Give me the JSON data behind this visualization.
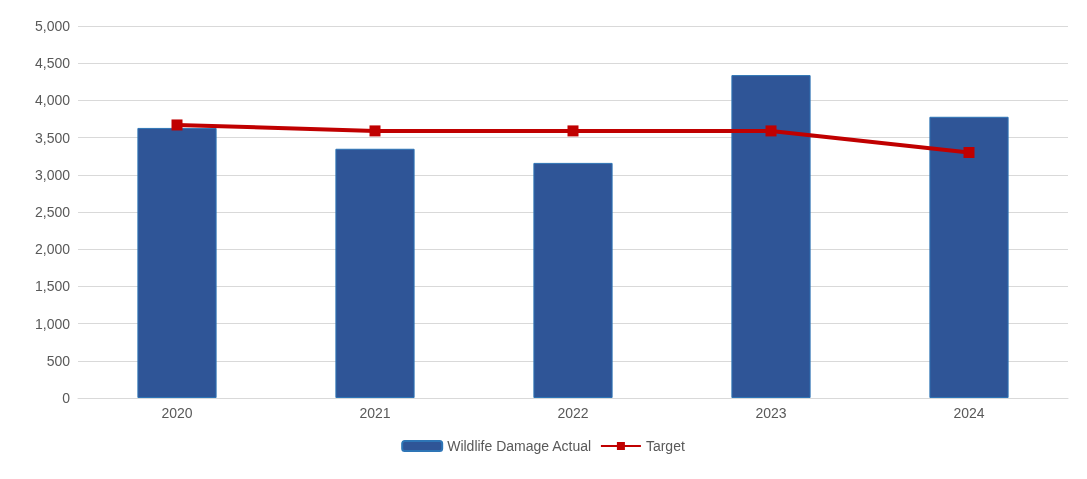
{
  "chart_data": {
    "type": "bar",
    "categories": [
      "2020",
      "2021",
      "2022",
      "2023",
      "2024"
    ],
    "series": [
      {
        "name": "Wildlife Damage Actual",
        "color": "#2f5597",
        "values": [
          3630,
          3350,
          3160,
          4340,
          3780
        ]
      },
      {
        "name": "Target",
        "type": "line",
        "color": "#c00000",
        "values": [
          3670,
          3590,
          3590,
          3590,
          3300
        ]
      }
    ],
    "ylim": [
      0,
      5000
    ],
    "yticks": [
      0,
      500,
      {
        "value": 1000,
        "label": "1,000"
      },
      {
        "value": 1500,
        "label": "1,500"
      },
      {
        "value": 2000,
        "label": "2,000"
      },
      {
        "value": 2500,
        "label": "2,500"
      },
      {
        "value": 3000,
        "label": "3,000"
      },
      {
        "value": 3500,
        "label": "3,500"
      },
      {
        "value": 4000,
        "label": "4,000"
      },
      {
        "value": 4500,
        "label": "4,500"
      },
      {
        "value": 5000,
        "label": "5,000"
      }
    ],
    "grid": "y",
    "legend": "bottom",
    "marker": "square"
  }
}
